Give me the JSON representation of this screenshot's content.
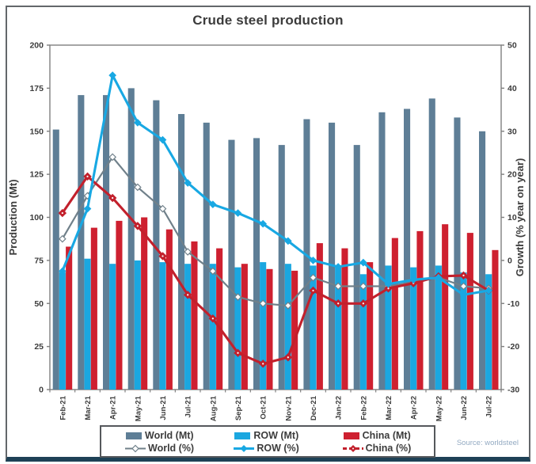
{
  "title": "Crude steel production",
  "source_note": "Source: worldsteel",
  "colors": {
    "world_bar": "#5e7e96",
    "row_bar": "#1ba7e0",
    "china_bar": "#ce2030",
    "world_line": "#70808a",
    "row_line": "#18a8e3",
    "china_line": "#c2202c",
    "frame": "#7f7f7f",
    "tick_text": "#3c3c3c",
    "bottom_band": "#1e4156",
    "source_text": "#93aac2"
  },
  "chart_data": {
    "type": "bar+line",
    "title": "Crude steel production",
    "categories": [
      "Feb-21",
      "Mar-21",
      "Apr-21",
      "May-21",
      "Jun-21",
      "Jul-21",
      "Aug-21",
      "Sep-21",
      "Oct-21",
      "Nov-21",
      "Dec-21",
      "Jan-22",
      "Feb-22",
      "Mar-22",
      "Apr-22",
      "May-22",
      "Jun-22",
      "Jul-22"
    ],
    "bar_series": [
      {
        "name": "World (Mt)",
        "axis": "left",
        "color_key": "world_bar",
        "values": [
          151,
          171,
          171,
          175,
          168,
          160,
          155,
          145,
          146,
          142,
          157,
          155,
          142,
          161,
          163,
          169,
          158,
          150
        ]
      },
      {
        "name": "ROW (Mt)",
        "axis": "left",
        "color_key": "row_bar",
        "values": [
          68,
          76,
          73,
          75,
          74,
          73,
          73,
          71,
          74,
          73,
          72,
          72,
          67,
          72,
          71,
          72,
          68,
          67
        ]
      },
      {
        "name": "China (Mt)",
        "axis": "left",
        "color_key": "china_bar",
        "values": [
          83,
          94,
          98,
          100,
          93,
          86,
          82,
          73,
          70,
          69,
          85,
          82,
          74,
          88,
          92,
          96,
          91,
          81
        ]
      }
    ],
    "line_series": [
      {
        "name": "World (%)",
        "axis": "right",
        "color_key": "world_line",
        "marker": "hollow-diamond",
        "values": [
          5,
          15,
          24,
          17,
          12,
          2,
          -2.5,
          -8.5,
          -10,
          -10.5,
          -4,
          -6,
          -6,
          -6,
          -5,
          -4,
          -6,
          -6.5
        ]
      },
      {
        "name": "China (%)",
        "axis": "right",
        "color_key": "china_line",
        "marker": "solid-diamond-dot",
        "values": [
          11,
          19.5,
          14.5,
          8,
          1,
          -8,
          -13.5,
          -21.5,
          -24,
          -22.5,
          -7,
          -10,
          -10,
          -6.5,
          -5.3,
          -3.7,
          -3.5,
          -7
        ]
      },
      {
        "name": "ROW (%)",
        "axis": "right",
        "color_key": "row_line",
        "marker": "solid-diamond",
        "values": [
          -2.5,
          12,
          43,
          32,
          28,
          18,
          13,
          11,
          8.5,
          4.5,
          0,
          -1.5,
          -0.5,
          -5.5,
          -4.5,
          -4,
          -8,
          -7
        ]
      }
    ],
    "left_axis": {
      "label": "Production (Mt)",
      "min": 0,
      "max": 200,
      "step": 25,
      "ticks": [
        0,
        25,
        50,
        75,
        100,
        125,
        150,
        175,
        200
      ]
    },
    "right_axis": {
      "label": "Growth (% year on year)",
      "min": -30,
      "max": 50,
      "step": 10,
      "ticks": [
        -30,
        -20,
        -10,
        0,
        10,
        20,
        30,
        40,
        50
      ]
    },
    "grid": false,
    "legend_position": "bottom"
  },
  "legend": {
    "row1": [
      {
        "label": "World (Mt)",
        "swatch": "box",
        "color_key": "world_bar"
      },
      {
        "label": "ROW (Mt)",
        "swatch": "box",
        "color_key": "row_bar"
      },
      {
        "label": "China (Mt)",
        "swatch": "box",
        "color_key": "china_bar"
      }
    ],
    "row2": [
      {
        "label": "World (%)",
        "swatch": "line-hollow-diamond",
        "color_key": "world_line"
      },
      {
        "label": "ROW (%)",
        "swatch": "line-solid-diamond",
        "color_key": "row_line"
      },
      {
        "label": "China (%)",
        "swatch": "dash-solid-diamond",
        "color_key": "china_line"
      }
    ]
  }
}
